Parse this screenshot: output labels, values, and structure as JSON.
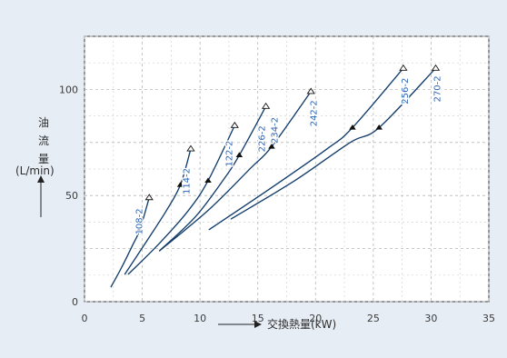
{
  "chart_data": {
    "type": "line",
    "title": "",
    "xlabel": "交換熱量(kW)",
    "ylabel": {
      "line1": "油",
      "line2": "流",
      "line3": "量",
      "unit": "(L/min)"
    },
    "xlim": [
      0,
      35
    ],
    "ylim": [
      0,
      125
    ],
    "x_ticks": [
      {
        "value": 0,
        "label": "0"
      },
      {
        "value": 5,
        "label": "5"
      },
      {
        "value": 10,
        "label": "10"
      },
      {
        "value": 15,
        "label": "15"
      },
      {
        "value": 20,
        "label": "20"
      },
      {
        "value": 25,
        "label": "25"
      },
      {
        "value": 30,
        "label": "30"
      },
      {
        "value": 35,
        "label": "35"
      }
    ],
    "y_ticks": [
      {
        "value": 0,
        "label": "0"
      },
      {
        "value": 50,
        "label": "50"
      },
      {
        "value": 100,
        "label": "100"
      }
    ],
    "grid": true,
    "series": [
      {
        "name": "108-2",
        "x": [
          2.3,
          3.2,
          4.2,
          4.8,
          5.6
        ],
        "y": [
          7,
          16,
          27,
          34,
          49
        ],
        "filled_marker": {
          "x": 4.8,
          "y": 34
        },
        "open_marker": {
          "x": 5.6,
          "y": 49
        }
      },
      {
        "name": "114-2",
        "x": [
          3.5,
          5.2,
          7.1,
          8.3,
          9.2
        ],
        "y": [
          13,
          27,
          43,
          55,
          72
        ],
        "filled_marker": {
          "x": 8.3,
          "y": 55
        },
        "open_marker": {
          "x": 9.2,
          "y": 72
        }
      },
      {
        "name": "122-2",
        "x": [
          3.8,
          6.4,
          9.0,
          10.7,
          13.0
        ],
        "y": [
          13,
          27,
          43,
          57,
          83
        ],
        "filled_marker": {
          "x": 10.7,
          "y": 57
        },
        "open_marker": {
          "x": 13.0,
          "y": 83
        }
      },
      {
        "name": "226-2",
        "x": [
          6.5,
          9.6,
          12.1,
          13.4,
          15.7
        ],
        "y": [
          24,
          40,
          58,
          69,
          92
        ],
        "filled_marker": {
          "x": 13.4,
          "y": 69
        },
        "open_marker": {
          "x": 15.7,
          "y": 92
        }
      },
      {
        "name": "234-2",
        "x": [
          6.5,
          10.7,
          14.4,
          16.2,
          19.6
        ],
        "y": [
          24,
          43,
          63,
          73,
          99
        ],
        "filled_marker": {
          "x": 16.2,
          "y": 73
        },
        "open_marker": {
          "x": 19.6,
          "y": 99
        }
      },
      {
        "name": "242-2",
        "x": [
          10.8,
          16.0,
          21.0,
          23.2,
          27.6
        ],
        "y": [
          34,
          53,
          72,
          82,
          110
        ],
        "filled_marker": {
          "x": 23.2,
          "y": 82
        },
        "open_marker": {
          "x": 27.6,
          "y": 110
        }
      },
      {
        "name": "256-2",
        "x": [
          12.7,
          18.2,
          23.0,
          25.5,
          30.4
        ],
        "y": [
          39,
          57,
          75,
          82,
          110
        ],
        "filled_marker": {
          "x": 25.5,
          "y": 82
        },
        "open_marker": {
          "x": 30.4,
          "y": 110
        }
      },
      {
        "name": "270-2",
        "x": [],
        "y": [],
        "filled_marker": null,
        "open_marker": null
      }
    ]
  }
}
